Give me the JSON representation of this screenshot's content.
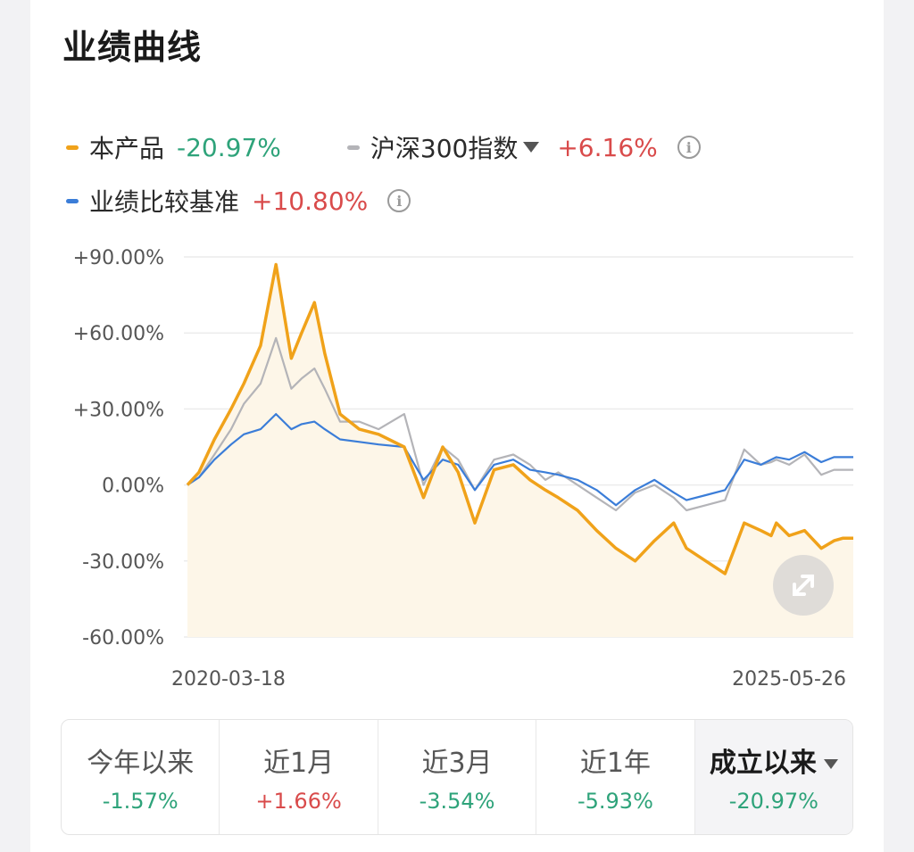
{
  "title": "业绩曲线",
  "legend": {
    "product": {
      "label": "本产品",
      "value": "-20.97%",
      "color": "#f0a21a"
    },
    "index": {
      "label": "沪深300指数",
      "value": "+6.16%",
      "color": "#b4b4b8"
    },
    "benchmark": {
      "label": "业绩比较基准",
      "value": "+10.80%",
      "color": "#3b7dd8"
    },
    "info_glyph": "i"
  },
  "chart_data": {
    "type": "line",
    "x_start": "2020-03-18",
    "x_end": "2025-05-26",
    "x_tick_labels": [
      "2020-03-18",
      "2025-05-26"
    ],
    "y_tick_labels": [
      "+90.00%",
      "+60.00%",
      "+30.00%",
      "0.00%",
      "-30.00%",
      "-60.00%"
    ],
    "ylim": [
      -60,
      90
    ],
    "grid": true,
    "x": [
      2020.21,
      2020.3,
      2020.42,
      2020.55,
      2020.65,
      2020.78,
      2020.9,
      2021.02,
      2021.1,
      2021.2,
      2021.28,
      2021.4,
      2021.55,
      2021.7,
      2021.9,
      2022.05,
      2022.2,
      2022.32,
      2022.45,
      2022.6,
      2022.75,
      2022.88,
      2023.0,
      2023.1,
      2023.25,
      2023.4,
      2023.55,
      2023.7,
      2023.85,
      2024.0,
      2024.1,
      2024.25,
      2024.4,
      2024.55,
      2024.68,
      2024.76,
      2024.8,
      2024.9,
      2025.02,
      2025.15,
      2025.25,
      2025.32,
      2025.4
    ],
    "series": [
      {
        "name": "本产品",
        "color": "#f0a21a",
        "values": [
          0,
          5,
          18,
          30,
          40,
          55,
          87,
          50,
          60,
          72,
          52,
          28,
          22,
          20,
          15,
          -5,
          15,
          5,
          -15,
          6,
          8,
          2,
          -2,
          -5,
          -10,
          -18,
          -25,
          -30,
          -22,
          -15,
          -25,
          -30,
          -35,
          -15,
          -18,
          -20,
          -15,
          -20,
          -18,
          -25,
          -22,
          -21,
          -21
        ]
      },
      {
        "name": "沪深300指数",
        "color": "#b4b4b8",
        "values": [
          0,
          3,
          12,
          22,
          32,
          40,
          58,
          38,
          42,
          46,
          38,
          25,
          25,
          22,
          28,
          0,
          15,
          10,
          -2,
          10,
          12,
          8,
          2,
          5,
          0,
          -5,
          -10,
          -3,
          0,
          -5,
          -10,
          -8,
          -6,
          14,
          8,
          9,
          10,
          8,
          12,
          4,
          6,
          6,
          6
        ]
      },
      {
        "name": "业绩比较基准",
        "color": "#3b7dd8",
        "values": [
          0,
          3,
          10,
          16,
          20,
          22,
          28,
          22,
          24,
          25,
          22,
          18,
          17,
          16,
          15,
          2,
          10,
          8,
          -2,
          8,
          10,
          6,
          5,
          4,
          2,
          -2,
          -8,
          -2,
          2,
          -3,
          -6,
          -4,
          -2,
          10,
          8,
          10,
          11,
          10,
          13,
          9,
          11,
          11,
          11
        ]
      }
    ]
  },
  "periods": [
    {
      "label": "今年以来",
      "value": "-1.57%",
      "dir": "down"
    },
    {
      "label": "近1月",
      "value": "+1.66%",
      "dir": "up"
    },
    {
      "label": "近3月",
      "value": "-3.54%",
      "dir": "down"
    },
    {
      "label": "近1年",
      "value": "-5.93%",
      "dir": "down"
    },
    {
      "label": "成立以来",
      "value": "-20.97%",
      "dir": "down",
      "active": true
    }
  ]
}
